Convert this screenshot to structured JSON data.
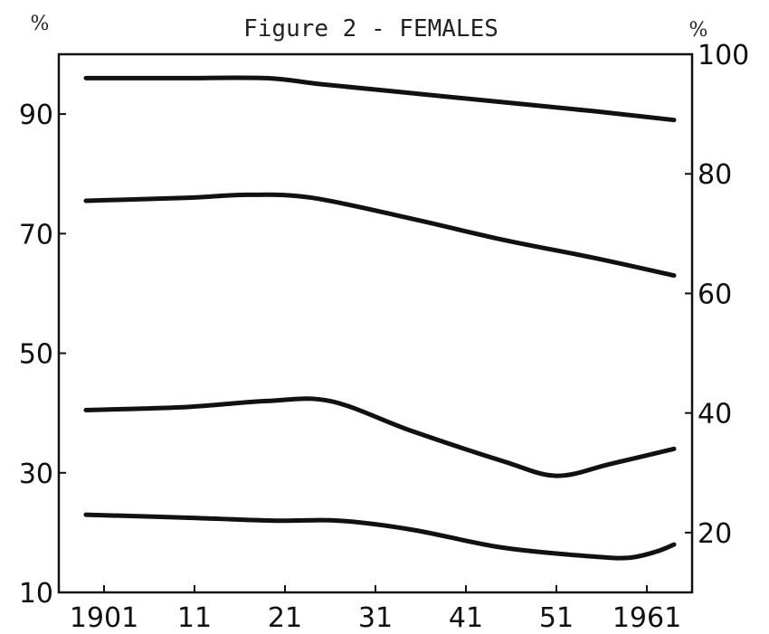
{
  "chart_data": {
    "type": "line",
    "title": "Figure 2 - FEMALES",
    "left_unit": "%",
    "right_unit": "%",
    "x_ticks": [
      "1901",
      "11",
      "21",
      "31",
      "41",
      "51",
      "1961"
    ],
    "x_tick_values": [
      1901,
      1911,
      1921,
      1931,
      1941,
      1951,
      1961
    ],
    "xlim": [
      1896,
      1966
    ],
    "left_axis": {
      "ticks": [
        10,
        30,
        50,
        70,
        90
      ],
      "ylim": [
        10,
        100
      ]
    },
    "right_axis": {
      "ticks": [
        20,
        40,
        60,
        80,
        100
      ],
      "ylim": [
        10,
        100
      ]
    },
    "grid": false,
    "legend": "none",
    "series": [
      {
        "x": [
          1899,
          1910,
          1919,
          1925,
          1935,
          1945,
          1955,
          1964
        ],
        "y": [
          96,
          96,
          96,
          95,
          93.5,
          92,
          90.5,
          89
        ]
      },
      {
        "x": [
          1899,
          1910,
          1917,
          1924,
          1935,
          1945,
          1955,
          1964
        ],
        "y": [
          75.5,
          76,
          76.5,
          76,
          72.5,
          69,
          66,
          63
        ]
      },
      {
        "x": [
          1899,
          1910,
          1919,
          1926,
          1935,
          1945,
          1951,
          1957,
          1964
        ],
        "y": [
          40.5,
          41,
          42,
          42,
          37,
          32,
          29.5,
          31.5,
          34
        ]
      },
      {
        "x": [
          1899,
          1910,
          1920,
          1927,
          1935,
          1945,
          1955,
          1959,
          1962,
          1964
        ],
        "y": [
          23,
          22.5,
          22,
          22,
          20.5,
          17.5,
          16,
          15.8,
          16.8,
          18
        ]
      }
    ]
  }
}
